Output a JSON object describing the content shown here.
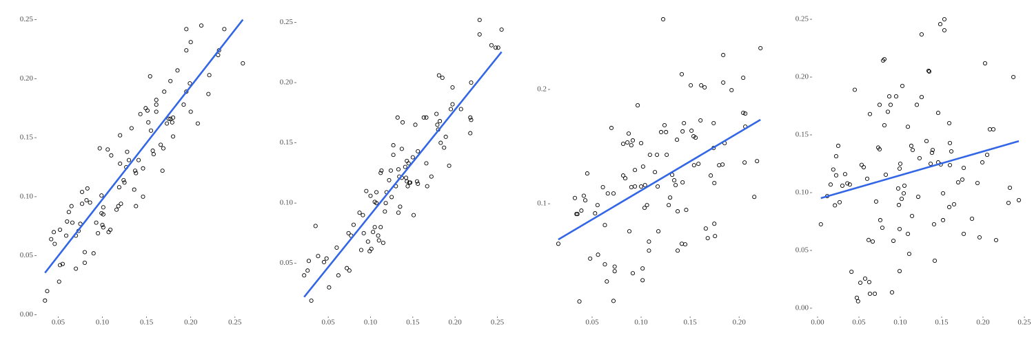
{
  "chart_data": [
    {
      "type": "scatter",
      "color": "#000000",
      "xlim": [
        0.027,
        0.265
      ],
      "ylim": [
        -0.005,
        0.255
      ],
      "xticks": [
        0.05,
        {
          "value": 0.1,
          "label": "0.10"
        },
        0.15,
        {
          "value": 0.2,
          "label": "0.20"
        },
        0.25
      ],
      "yticks": [
        {
          "value": 0,
          "label": "0.00"
        },
        0.05,
        {
          "value": 0.1,
          "label": "0.10"
        },
        0.15,
        {
          "value": 0.2,
          "label": "0.20"
        },
        0.25
      ],
      "x": [
        0.035,
        0.0375,
        0.042,
        0.045,
        0.046,
        0.051,
        0.052,
        0.055,
        0.052,
        0.059,
        0.06,
        0.062,
        0.065,
        0.066,
        0.07,
        0.07,
        0.073,
        0.075,
        0.077,
        0.077,
        0.08,
        0.08,
        0.082,
        0.083,
        0.086,
        0.09,
        0.093,
        0.095,
        0.097,
        0.099,
        0.099,
        0.1,
        0.101,
        0.101,
        0.101,
        0.106,
        0.107,
        0.109,
        0.11,
        0.116,
        0.118,
        0.119,
        0.12,
        0.12,
        0.121,
        0.124,
        0.125,
        0.127,
        0.128,
        0.13,
        0.133,
        0.136,
        0.137,
        0.138,
        0.138,
        0.141,
        0.143,
        0.146,
        0.146,
        0.149,
        0.151,
        0.152,
        0.154,
        0.155,
        0.157,
        0.158,
        0.161,
        0.161,
        0.161,
        0.166,
        0.168,
        0.169,
        0.17,
        0.173,
        0.175,
        0.177,
        0.179,
        0.177,
        0.18,
        0.18,
        0.185,
        0.192,
        0.195,
        0.195,
        0.195,
        0.199,
        0.2,
        0.2,
        0.208,
        0.212,
        0.22,
        0.221,
        0.231,
        0.232,
        0.238,
        0.259
      ],
      "values": [
        0.012,
        0.02,
        0.064,
        0.07,
        0.06,
        0.028,
        0.042,
        0.043,
        0.072,
        0.067,
        0.079,
        0.087,
        0.092,
        0.078,
        0.067,
        0.039,
        0.071,
        0.077,
        0.094,
        0.104,
        0.053,
        0.044,
        0.097,
        0.107,
        0.095,
        0.052,
        0.078,
        0.069,
        0.141,
        0.101,
        0.086,
        0.076,
        0.074,
        0.091,
        0.085,
        0.14,
        0.07,
        0.072,
        0.135,
        0.089,
        0.092,
        0.108,
        0.152,
        0.128,
        0.094,
        0.114,
        0.112,
        0.125,
        0.138,
        0.131,
        0.158,
        0.106,
        0.122,
        0.092,
        0.12,
        0.131,
        0.17,
        0.1,
        0.124,
        0.175,
        0.173,
        0.163,
        0.202,
        0.156,
        0.139,
        0.136,
        0.172,
        0.182,
        0.178,
        0.144,
        0.122,
        0.141,
        0.189,
        0.162,
        0.166,
        0.166,
        0.163,
        0.198,
        0.151,
        0.167,
        0.207,
        0.178,
        0.189,
        0.242,
        0.224,
        0.196,
        0.172,
        0.231,
        0.162,
        0.245,
        0.187,
        0.203,
        0.22,
        0.224,
        0.242,
        0.213
      ],
      "fit": {
        "color": "#3366e6",
        "x": [
          0.035,
          0.259
        ],
        "values": [
          0.0355,
          0.25
        ]
      }
    },
    {
      "type": "scatter",
      "color": "#000000",
      "xlim": [
        0.014,
        0.261
      ],
      "ylim": [
        0.015,
        0.256
      ],
      "xticks": [
        0.05,
        {
          "value": 0.1,
          "label": "0.10"
        },
        0.15,
        {
          "value": 0.2,
          "label": "0.20"
        },
        0.25
      ],
      "yticks": [
        0.05,
        {
          "value": 0.1,
          "label": "0.10"
        },
        0.15,
        {
          "value": 0.2,
          "label": "0.20"
        },
        0.25
      ],
      "x": [
        0.0215,
        0.0256,
        0.027,
        0.03,
        0.035,
        0.038,
        0.045,
        0.048,
        0.051,
        0.06,
        0.062,
        0.072,
        0.074,
        0.075,
        0.077,
        0.08,
        0.087,
        0.089,
        0.091,
        0.092,
        0.095,
        0.097,
        0.099,
        0.1,
        0.101,
        0.103,
        0.105,
        0.105,
        0.107,
        0.107,
        0.109,
        0.11,
        0.112,
        0.112,
        0.113,
        0.115,
        0.117,
        0.118,
        0.119,
        0.122,
        0.124,
        0.125,
        0.127,
        0.127,
        0.13,
        0.132,
        0.133,
        0.133,
        0.134,
        0.135,
        0.137,
        0.137,
        0.138,
        0.141,
        0.142,
        0.143,
        0.143,
        0.144,
        0.145,
        0.146,
        0.147,
        0.15,
        0.151,
        0.153,
        0.155,
        0.156,
        0.156,
        0.163,
        0.166,
        0.166,
        0.167,
        0.172,
        0.178,
        0.179,
        0.18,
        0.181,
        0.182,
        0.183,
        0.185,
        0.187,
        0.189,
        0.193,
        0.195,
        0.197,
        0.197,
        0.207,
        0.218,
        0.218,
        0.219,
        0.219,
        0.229,
        0.229,
        0.243,
        0.248,
        0.251,
        0.255
      ],
      "values": [
        0.04,
        0.044,
        0.052,
        0.019,
        0.081,
        0.056,
        0.051,
        0.054,
        0.03,
        0.063,
        0.04,
        0.046,
        0.075,
        0.044,
        0.073,
        0.082,
        0.092,
        0.061,
        0.09,
        0.075,
        0.11,
        0.068,
        0.06,
        0.106,
        0.062,
        0.076,
        0.08,
        0.101,
        0.1,
        0.109,
        0.073,
        0.069,
        0.08,
        0.125,
        0.127,
        0.067,
        0.093,
        0.1,
        0.109,
        0.119,
        0.127,
        0.105,
        0.14,
        0.148,
        0.114,
        0.171,
        0.128,
        0.092,
        0.122,
        0.097,
        0.145,
        0.121,
        0.167,
        0.13,
        0.121,
        0.118,
        0.135,
        0.114,
        0.133,
        0.117,
        0.117,
        0.138,
        0.09,
        0.165,
        0.118,
        0.143,
        0.116,
        0.171,
        0.171,
        0.133,
        0.114,
        0.122,
        0.174,
        0.165,
        0.161,
        0.206,
        0.168,
        0.15,
        0.204,
        0.146,
        0.155,
        0.131,
        0.178,
        0.182,
        0.196,
        0.178,
        0.158,
        0.171,
        0.169,
        0.2,
        0.252,
        0.24,
        0.231,
        0.229,
        0.229,
        0.244
      ],
      "fit": {
        "color": "#3366e6",
        "x": [
          0.0215,
          0.255
        ],
        "values": [
          0.022,
          0.2255
        ]
      }
    },
    {
      "type": "scatter",
      "color": "#000000",
      "xlim": [
        0.0085,
        0.228
      ],
      "ylim": [
        0.011,
        0.265
      ],
      "xticks": [
        0.05,
        {
          "value": 0.1,
          "label": "0.10"
        },
        0.15,
        {
          "value": 0.2,
          "label": "0.20"
        }
      ],
      "yticks": [
        0.1,
        0.2
      ],
      "x": [
        0.0155,
        0.0324,
        0.034,
        0.035,
        0.037,
        0.039,
        0.0415,
        0.043,
        0.045,
        0.048,
        0.053,
        0.0555,
        0.056,
        0.061,
        0.063,
        0.063,
        0.065,
        0.066,
        0.0697,
        0.0718,
        0.0718,
        0.073,
        0.073,
        0.0817,
        0.0817,
        0.0838,
        0.086,
        0.0873,
        0.088,
        0.09,
        0.09,
        0.0915,
        0.0915,
        0.0937,
        0.0937,
        0.0965,
        0.1,
        0.1,
        0.1015,
        0.1015,
        0.102,
        0.1035,
        0.104,
        0.106,
        0.108,
        0.108,
        0.109,
        0.1141,
        0.1162,
        0.1169,
        0.1176,
        0.1204,
        0.1225,
        0.1239,
        0.1254,
        0.1261,
        0.1282,
        0.1296,
        0.1317,
        0.1338,
        0.1352,
        0.1366,
        0.1373,
        0.1373,
        0.1415,
        0.1415,
        0.1423,
        0.1423,
        0.1437,
        0.145,
        0.146,
        0.1507,
        0.1514,
        0.1535,
        0.154,
        0.1556,
        0.1585,
        0.1606,
        0.1613,
        0.1648,
        0.166,
        0.168,
        0.1711,
        0.174,
        0.174,
        0.1747,
        0.1747,
        0.1754,
        0.1796,
        0.1831,
        0.1838,
        0.1838,
        0.1852,
        0.1923,
        0.2042,
        0.2042,
        0.2056,
        0.2063,
        0.2063,
        0.2155,
        0.2183,
        0.2218
      ],
      "values": [
        0.065,
        0.105,
        0.091,
        0.091,
        0.0145,
        0.094,
        0.107,
        0.103,
        0.1265,
        0.052,
        0.0916,
        0.0988,
        0.0554,
        0.1145,
        0.047,
        0.0813,
        0.032,
        0.109,
        0.1663,
        0.109,
        0.015,
        0.045,
        0.041,
        0.1247,
        0.1524,
        0.1223,
        0.1536,
        0.1614,
        0.0759,
        0.1145,
        0.1512,
        0.1554,
        0.0392,
        0.1295,
        0.1151,
        0.1861,
        0.1151,
        0.153,
        0.0434,
        0.0331,
        0.1325,
        0.0964,
        0.1163,
        0.0988,
        0.0669,
        0.059,
        0.1428,
        0.1277,
        0.1428,
        0.1151,
        0.0759,
        0.1627,
        0.2614,
        0.1687,
        0.1627,
        0.1428,
        0.0988,
        0.1054,
        0.1253,
        0.1205,
        0.1163,
        0.156,
        0.0934,
        0.059,
        0.2133,
        0.065,
        0.1633,
        0.1187,
        0.1705,
        0.0645,
        0.0946,
        0.2036,
        0.1639,
        0.159,
        0.1337,
        0.1578,
        0.1349,
        0.1729,
        0.2036,
        0.2018,
        0.0783,
        0.0699,
        0.1247,
        0.1705,
        0.1488,
        0.0825,
        0.1181,
        0.0717,
        0.1337,
        0.1343,
        0.2301,
        0.206,
        0.153,
        0.1994,
        0.2102,
        0.1795,
        0.1361,
        0.1789,
        0.1675,
        0.106,
        0.1373,
        0.2361
      ],
      "fit": {
        "color": "#3366e6",
        "x": [
          0.0155,
          0.2218
        ],
        "values": [
          0.0687,
          0.1735
        ]
      }
    },
    {
      "type": "scatter",
      "color": "#000000",
      "xlim": [
        -0.005,
        0.2533
      ],
      "ylim": [
        -0.0036,
        0.2536
      ],
      "xticks": [
        {
          "value": 0,
          "label": "0.00"
        },
        0.05,
        {
          "value": 0.1,
          "label": "0.10"
        },
        0.15,
        {
          "value": 0.2,
          "label": "0.20"
        },
        0.25
      ],
      "yticks": [
        {
          "value": 0,
          "label": "0.00"
        },
        0.05,
        {
          "value": 0.1,
          "label": "0.10"
        },
        0.15,
        {
          "value": 0.2,
          "label": "0.20"
        },
        0.25
      ],
      "x": [
        0.004,
        0.0117,
        0.0158,
        0.019,
        0.021,
        0.0225,
        0.0225,
        0.025,
        0.0267,
        0.03,
        0.0333,
        0.036,
        0.039,
        0.041,
        0.045,
        0.0475,
        0.049,
        0.0517,
        0.0533,
        0.0558,
        0.0575,
        0.06,
        0.0617,
        0.0625,
        0.0633,
        0.0633,
        0.0667,
        0.0692,
        0.0708,
        0.0733,
        0.075,
        0.075,
        0.0758,
        0.0783,
        0.0792,
        0.0808,
        0.0808,
        0.0825,
        0.085,
        0.0867,
        0.0883,
        0.09,
        0.0917,
        0.095,
        0.0975,
        0.0983,
        0.0992,
        0.0992,
        0.0992,
        0.1,
        0.1017,
        0.1025,
        0.1042,
        0.105,
        0.1092,
        0.1092,
        0.1108,
        0.1133,
        0.1142,
        0.115,
        0.12,
        0.1217,
        0.1233,
        0.1258,
        0.1258,
        0.1317,
        0.1342,
        0.135,
        0.1367,
        0.1383,
        0.1392,
        0.1408,
        0.1417,
        0.1458,
        0.1458,
        0.149,
        0.1483,
        0.1517,
        0.1517,
        0.1533,
        0.1533,
        0.1592,
        0.1592,
        0.16,
        0.16,
        0.1617,
        0.165,
        0.17,
        0.175,
        0.1767,
        0.1767,
        0.1867,
        0.1933,
        0.1958,
        0.1992,
        0.2025,
        0.205,
        0.2083,
        0.2125,
        0.2158,
        0.2308,
        0.2325,
        0.2367,
        0.2433
      ],
      "values": [
        0.0726,
        0.097,
        0.107,
        0.12,
        0.089,
        0.115,
        0.1315,
        0.1405,
        0.0917,
        0.106,
        0.116,
        0.108,
        0.107,
        0.0315,
        0.189,
        0.009,
        0.006,
        0.022,
        0.124,
        0.122,
        0.0256,
        0.112,
        0.059,
        0.0226,
        0.0125,
        0.168,
        0.0577,
        0.0125,
        0.0923,
        0.139,
        0.176,
        0.1375,
        0.0762,
        0.0696,
        0.2143,
        0.2155,
        0.1583,
        0.1155,
        0.17,
        0.1833,
        0.176,
        0.0137,
        0.0583,
        0.1833,
        0.1036,
        0.0893,
        0.0321,
        0.0685,
        0.1208,
        0.125,
        0.0946,
        0.1923,
        0.0994,
        0.106,
        0.0643,
        0.157,
        0.047,
        0.1405,
        0.0798,
        0.1369,
        0.176,
        0.0964,
        0.1298,
        0.1827,
        0.2369,
        0.1446,
        0.2054,
        0.2048,
        0.125,
        0.1345,
        0.1369,
        0.0726,
        0.0411,
        0.1262,
        0.169,
        0.1244,
        0.2458,
        0.0994,
        0.0762,
        0.25,
        0.2405,
        0.0875,
        0.1601,
        0.1429,
        0.1238,
        0.1357,
        0.0899,
        0.1089,
        0.1113,
        0.1214,
        0.0643,
        0.0774,
        0.1083,
        0.0613,
        0.1262,
        0.2119,
        0.1327,
        0.1548,
        0.1548,
        0.0589,
        0.0911,
        0.1042,
        0.2,
        0.0935
      ],
      "fit": {
        "color": "#3366e6",
        "x": [
          0.004,
          0.2433
        ],
        "values": [
          0.0952,
          0.1446
        ]
      }
    }
  ]
}
